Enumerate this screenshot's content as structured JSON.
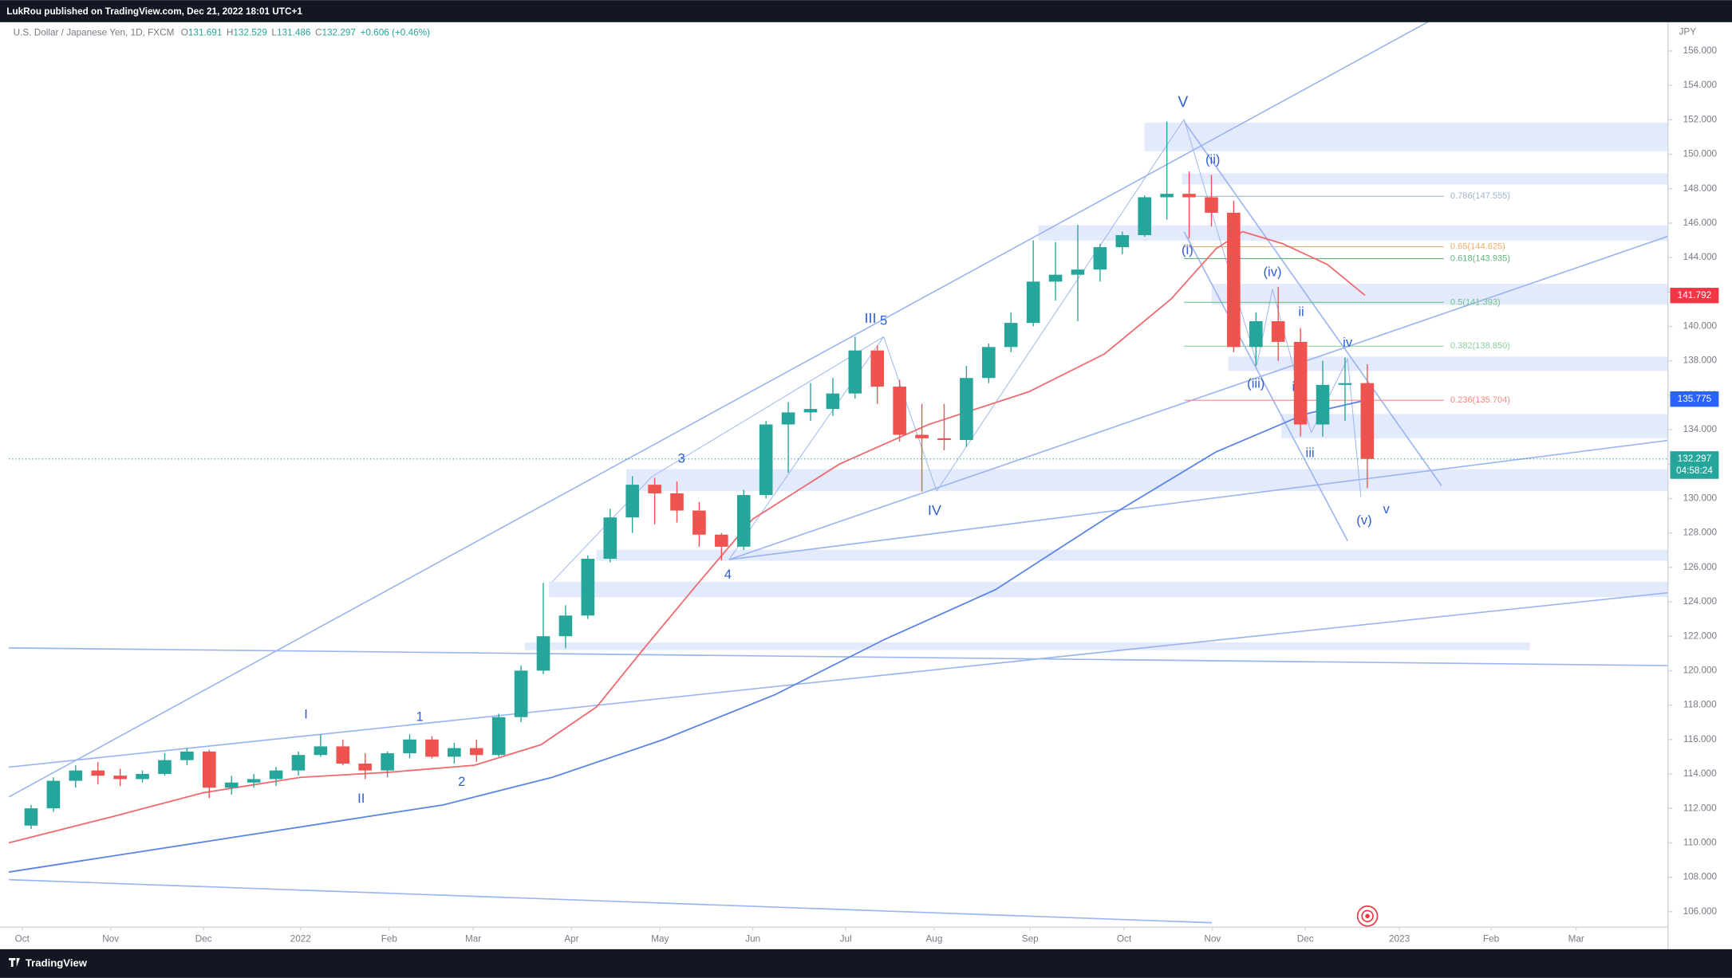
{
  "header": {
    "publisher": "LukRou published on TradingView.com, Dec 21, 2022 18:01 UTC+1",
    "brand": "TradingView"
  },
  "chart_data": {
    "type": "candlestick",
    "symbol": "U.S. Dollar / Japanese Yen, 1D, FXCM",
    "legend": [
      {
        "key": "O",
        "value": 131.691
      },
      {
        "key": "H",
        "value": 132.529
      },
      {
        "key": "L",
        "value": 131.486
      },
      {
        "key": "C",
        "value": 132.297
      }
    ],
    "change": "+0.606 (+0.46%)",
    "y_unit": "JPY",
    "up_color": "#26a69a",
    "down_color": "#ef5350",
    "categories": [
      null,
      null,
      null,
      null,
      null,
      null,
      null,
      null,
      null,
      null,
      null,
      null,
      null,
      null,
      null,
      null,
      null,
      null,
      null,
      null,
      null,
      null,
      null,
      null,
      null,
      null,
      null,
      null,
      null,
      null,
      null,
      null,
      null,
      null,
      null,
      null,
      null,
      null,
      null,
      null,
      null,
      null,
      null,
      null,
      null,
      null,
      null,
      null,
      null,
      null,
      null,
      null,
      null,
      null,
      null,
      null,
      null,
      null,
      null,
      null,
      null
    ],
    "open": [
      111.0,
      112.0,
      113.6,
      114.2,
      113.9,
      113.7,
      114.0,
      114.8,
      115.3,
      113.2,
      113.5,
      113.7,
      114.2,
      115.1,
      115.6,
      114.6,
      114.2,
      115.2,
      116.0,
      115.0,
      115.5,
      115.1,
      117.3,
      120.0,
      122.0,
      123.2,
      126.5,
      128.9,
      130.8,
      130.3,
      129.3,
      127.9,
      127.2,
      130.2,
      134.3,
      135.0,
      135.2,
      136.1,
      138.6,
      136.5,
      133.7,
      133.5,
      133.4,
      137.0,
      138.8,
      140.2,
      142.6,
      143.0,
      143.3,
      144.6,
      145.3,
      147.5,
      147.7,
      147.5,
      146.6,
      138.8,
      140.3,
      139.1,
      134.3,
      136.6,
      136.7
    ],
    "high": [
      112.2,
      113.8,
      114.5,
      114.7,
      114.3,
      114.2,
      115.2,
      115.5,
      115.4,
      113.9,
      114.0,
      114.4,
      115.3,
      116.3,
      116.0,
      115.2,
      115.3,
      116.3,
      116.2,
      115.8,
      116.0,
      117.5,
      120.3,
      125.1,
      123.8,
      126.7,
      129.4,
      131.3,
      131.2,
      131.0,
      129.8,
      128.0,
      130.5,
      134.5,
      135.6,
      136.7,
      137.0,
      139.4,
      138.9,
      136.9,
      135.5,
      135.5,
      137.7,
      139.0,
      140.8,
      145.0,
      144.9,
      145.9,
      144.8,
      145.5,
      147.6,
      151.9,
      149.0,
      148.8,
      147.3,
      140.8,
      142.3,
      139.9,
      138.0,
      138.2,
      137.8
    ],
    "low": [
      110.8,
      111.8,
      113.2,
      113.4,
      113.3,
      113.5,
      113.9,
      114.5,
      112.6,
      112.8,
      113.2,
      113.3,
      113.9,
      115.0,
      114.5,
      113.7,
      113.8,
      114.9,
      114.9,
      114.6,
      114.7,
      115.0,
      117.0,
      119.8,
      121.3,
      123.0,
      126.3,
      128.0,
      128.5,
      128.6,
      127.2,
      126.4,
      127.0,
      130.0,
      131.5,
      134.5,
      134.8,
      135.8,
      135.5,
      133.3,
      130.4,
      132.8,
      133.0,
      136.7,
      138.5,
      140.0,
      141.5,
      140.3,
      142.6,
      144.2,
      145.2,
      146.2,
      145.1,
      145.8,
      138.5,
      137.7,
      138.0,
      133.6,
      133.6,
      134.5,
      130.6
    ],
    "close": [
      112.0,
      113.6,
      114.2,
      113.9,
      113.7,
      114.0,
      114.8,
      115.3,
      113.2,
      113.5,
      113.7,
      114.2,
      115.1,
      115.6,
      114.6,
      114.2,
      115.2,
      116.0,
      115.0,
      115.5,
      115.1,
      117.3,
      120.0,
      122.0,
      123.2,
      126.5,
      128.9,
      130.8,
      130.3,
      129.3,
      127.9,
      127.2,
      130.2,
      134.3,
      135.0,
      135.2,
      136.1,
      138.6,
      136.5,
      133.7,
      133.5,
      133.4,
      137.0,
      138.8,
      140.2,
      142.6,
      143.0,
      143.3,
      144.6,
      145.3,
      147.5,
      147.7,
      147.5,
      146.6,
      138.8,
      140.3,
      139.1,
      134.3,
      136.6,
      136.7,
      132.3
    ],
    "overlays": [
      {
        "color": "#f06a6f",
        "x": [
          -1,
          3.6,
          7.7,
          12.1,
          16.1,
          19.9,
          22.9,
          25.4,
          27.4,
          29.9,
          32.4,
          36.3,
          40.3,
          44.8,
          48.2,
          51.2,
          53.2,
          54.4,
          56.2,
          58.2,
          59.9
        ],
        "values": [
          110.0,
          111.5,
          112.9,
          113.8,
          114.1,
          114.5,
          115.7,
          117.9,
          121.1,
          125.0,
          128.8,
          132.0,
          134.3,
          136.2,
          138.4,
          141.6,
          144.5,
          145.5,
          144.8,
          143.6,
          141.8
        ]
      },
      {
        "color": "#5b84e6",
        "x": [
          -1,
          8.5,
          18.5,
          23.4,
          28.4,
          33.4,
          38.3,
          43.3,
          48.2,
          53.2,
          57.2,
          59.9
        ],
        "values": [
          108.3,
          110.2,
          112.2,
          113.8,
          116.0,
          118.6,
          121.8,
          124.7,
          128.8,
          132.7,
          134.9,
          135.7
        ]
      }
    ],
    "fib": [
      {
        "label": "0.786(147.555)",
        "value": 147.555,
        "color": "#9fb6cc"
      },
      {
        "label": "0.65(144.625)",
        "value": 144.625,
        "color": "#f5a962"
      },
      {
        "label": "0.618(143.935)",
        "value": 143.935,
        "color": "#5fb37c"
      },
      {
        "label": "0.5(141.393)",
        "value": 141.393,
        "color": "#6fc28b"
      },
      {
        "label": "0.382(138.850)",
        "value": 138.85,
        "color": "#8dcf9f"
      },
      {
        "label": "0.236(135.704)",
        "value": 135.704,
        "color": "#f28b82"
      }
    ],
    "price_badges": [
      {
        "value": 141.792,
        "color": "#f23645"
      },
      {
        "value": 135.775,
        "color": "#2962ff"
      },
      {
        "value": 132.297,
        "color": "#26a69a",
        "countdown": "04:58:24"
      }
    ],
    "annotations": [
      "V",
      "(ii)",
      "(i)",
      "(iv)",
      "ii",
      "iv",
      "(iii)",
      "i",
      "iii",
      "(v)",
      "v",
      "III",
      "5",
      "3",
      "IV",
      "4",
      "I",
      "1",
      "II",
      "2"
    ],
    "xlim": [
      -1,
      73.5
    ],
    "xticks": [
      {
        "value": -0.4,
        "label": "Oct"
      },
      {
        "value": 3.57,
        "label": "Nov"
      },
      {
        "value": 7.74,
        "label": "Dec"
      },
      {
        "value": 12.1,
        "label": "2022"
      },
      {
        "value": 16.08,
        "label": "Feb"
      },
      {
        "value": 19.85,
        "label": "Mar"
      },
      {
        "value": 24.27,
        "label": "Apr"
      },
      {
        "value": 28.24,
        "label": "May"
      },
      {
        "value": 32.41,
        "label": "Jun"
      },
      {
        "value": 36.58,
        "label": "Jul"
      },
      {
        "value": 40.55,
        "label": "Aug"
      },
      {
        "value": 44.86,
        "label": "Sep"
      },
      {
        "value": 49.08,
        "label": "Oct"
      },
      {
        "value": 53.05,
        "label": "Nov"
      },
      {
        "value": 57.22,
        "label": "Dec"
      },
      {
        "value": 61.44,
        "label": "2023"
      },
      {
        "value": 65.56,
        "label": "Feb"
      },
      {
        "value": 69.38,
        "label": "Mar"
      }
    ],
    "ylim": [
      105.1,
      157.67
    ],
    "yticks": [
      {
        "value": 106,
        "label": "106.000"
      },
      {
        "value": 108,
        "label": "108.000"
      },
      {
        "value": 110,
        "label": "110.000"
      },
      {
        "value": 112,
        "label": "112.000"
      },
      {
        "value": 114,
        "label": "114.000"
      },
      {
        "value": 116,
        "label": "116.000"
      },
      {
        "value": 118,
        "label": "118.000"
      },
      {
        "value": 120,
        "label": "120.000"
      },
      {
        "value": 122,
        "label": "122.000"
      },
      {
        "value": 124,
        "label": "124.000"
      },
      {
        "value": 126,
        "label": "126.000"
      },
      {
        "value": 128,
        "label": "128.000"
      },
      {
        "value": 130,
        "label": "130.000"
      },
      {
        "value": 132,
        "label": "132.000"
      },
      {
        "value": 134,
        "label": "134.000"
      },
      {
        "value": 136,
        "label": "136.000"
      },
      {
        "value": 138,
        "label": "138.000"
      },
      {
        "value": 140,
        "label": "140.000"
      },
      {
        "value": 142,
        "label": "142.000"
      },
      {
        "value": 144,
        "label": "144.000"
      },
      {
        "value": 146,
        "label": "146.000"
      },
      {
        "value": 148,
        "label": "148.000"
      },
      {
        "value": 150,
        "label": "150.000"
      },
      {
        "value": 152,
        "label": "152.000"
      },
      {
        "value": 154,
        "label": "154.000"
      },
      {
        "value": 156,
        "label": "156.000"
      }
    ],
    "grid": false
  }
}
